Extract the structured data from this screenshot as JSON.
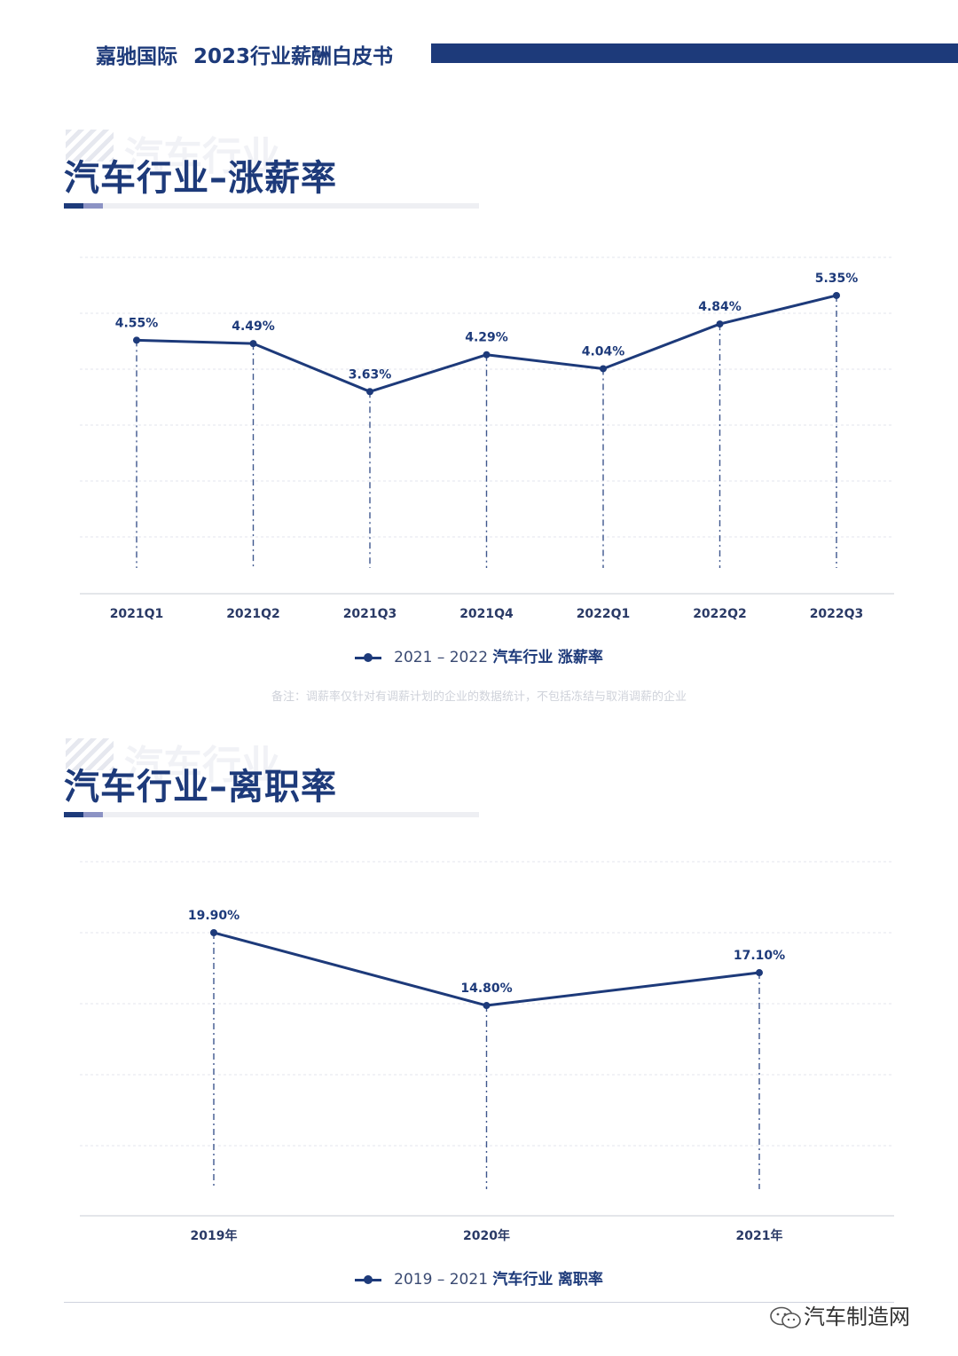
{
  "header": {
    "brand": "嘉驰国际",
    "title": "2023行业薪酬白皮书"
  },
  "sections": [
    {
      "watermark": "汽车行业",
      "title": "汽车行业–涨薪率",
      "legend": {
        "range": "2021 – 2022",
        "industry": "汽车行业",
        "metric": "涨薪率"
      },
      "note": "备注：调薪率仅针对有调薪计划的企业的数据统计，不包括冻结与取消调薪的企业"
    },
    {
      "watermark": "汽车行业",
      "title": "汽车行业–离职率",
      "legend": {
        "range": "2019 – 2021",
        "industry": "汽车行业",
        "metric": "离职率"
      }
    }
  ],
  "chart_data": [
    {
      "type": "line",
      "title": "汽车行业–涨薪率",
      "categories": [
        "2021Q1",
        "2021Q2",
        "2021Q3",
        "2021Q4",
        "2022Q1",
        "2022Q2",
        "2022Q3"
      ],
      "series": [
        {
          "name": "2021 – 2022 汽车行业 涨薪率",
          "values": [
            4.55,
            4.49,
            3.63,
            4.29,
            4.04,
            4.84,
            5.35
          ],
          "labels": [
            "4.55%",
            "4.49%",
            "3.63%",
            "4.29%",
            "4.04%",
            "4.84%",
            "5.35%"
          ]
        }
      ],
      "y_axis": {
        "min": 0,
        "max": 6,
        "grid": true,
        "tick_labels_shown": false
      },
      "color": "#1d3a7a"
    },
    {
      "type": "line",
      "title": "汽车行业–离职率",
      "categories": [
        "2019年",
        "2020年",
        "2021年"
      ],
      "series": [
        {
          "name": "2019 – 2021 汽车行业 离职率",
          "values": [
            19.9,
            14.8,
            17.1
          ],
          "labels": [
            "19.90%",
            "14.80%",
            "17.10%"
          ]
        }
      ],
      "y_axis": {
        "min": 0,
        "max": 25,
        "grid": true,
        "tick_labels_shown": false
      },
      "color": "#1d3a7a"
    }
  ],
  "footer": {
    "logo_text": "汽车制造网",
    "logo_icon": "wechat-icon"
  }
}
